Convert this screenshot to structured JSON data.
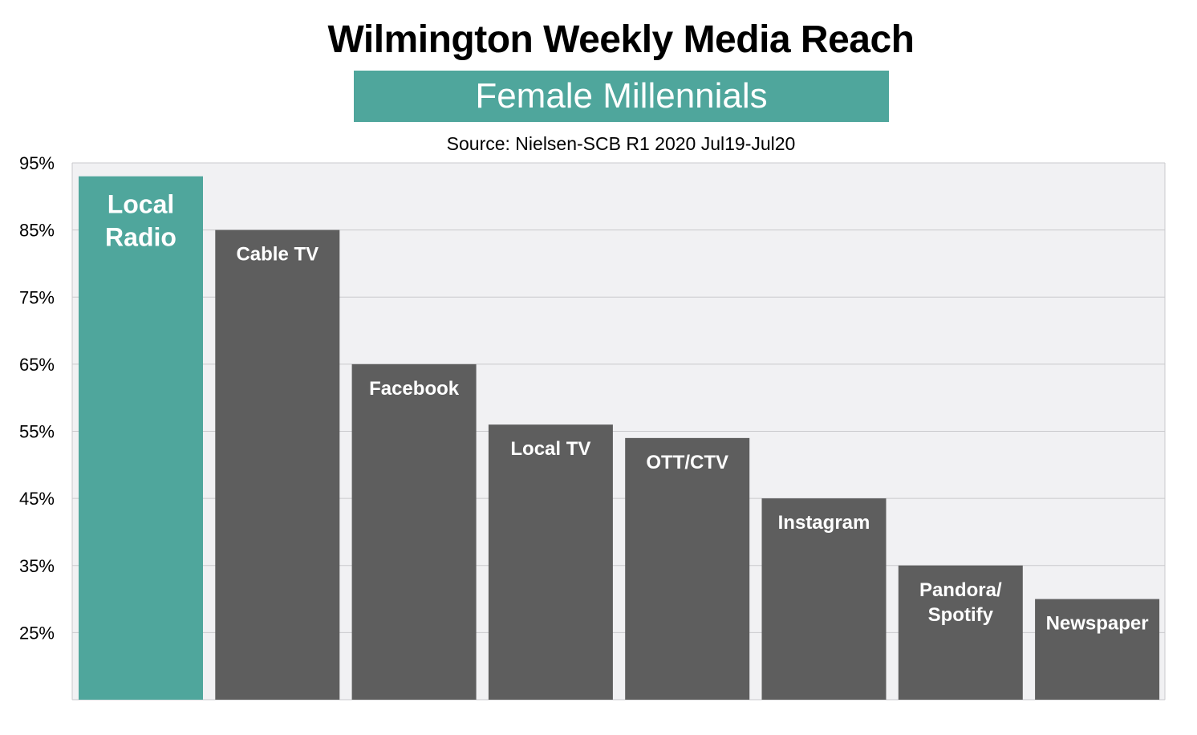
{
  "header": {
    "title": "Wilmington Weekly Media Reach",
    "subtitle": "Female Millennials",
    "source": "Source: Nielsen-SCB R1 2020 Jul19-Jul20"
  },
  "colors": {
    "highlight": "#4fa69c",
    "bar": "#5e5e5e",
    "plot_bg": "#f1f1f3",
    "grid": "#c9c9cc",
    "label": "#ffffff"
  },
  "chart_data": {
    "type": "bar",
    "title": "Wilmington Weekly Media Reach",
    "subtitle": "Female Millennials",
    "xlabel": "",
    "ylabel": "",
    "ylim": [
      15,
      95
    ],
    "y_ticks": [
      25,
      35,
      45,
      55,
      65,
      75,
      85,
      95
    ],
    "y_tick_labels": [
      "25%",
      "35%",
      "45%",
      "55%",
      "65%",
      "75%",
      "85%",
      "95%"
    ],
    "grid": true,
    "categories": [
      [
        "Local",
        "Radio"
      ],
      [
        "Cable TV"
      ],
      [
        "Facebook"
      ],
      [
        "Local TV"
      ],
      [
        "OTT/CTV"
      ],
      [
        "Instagram"
      ],
      [
        "Pandora/",
        "Spotify"
      ],
      [
        "Newspaper"
      ]
    ],
    "values": [
      93,
      85,
      65,
      56,
      54,
      45,
      35,
      30
    ],
    "highlight_index": 0
  }
}
